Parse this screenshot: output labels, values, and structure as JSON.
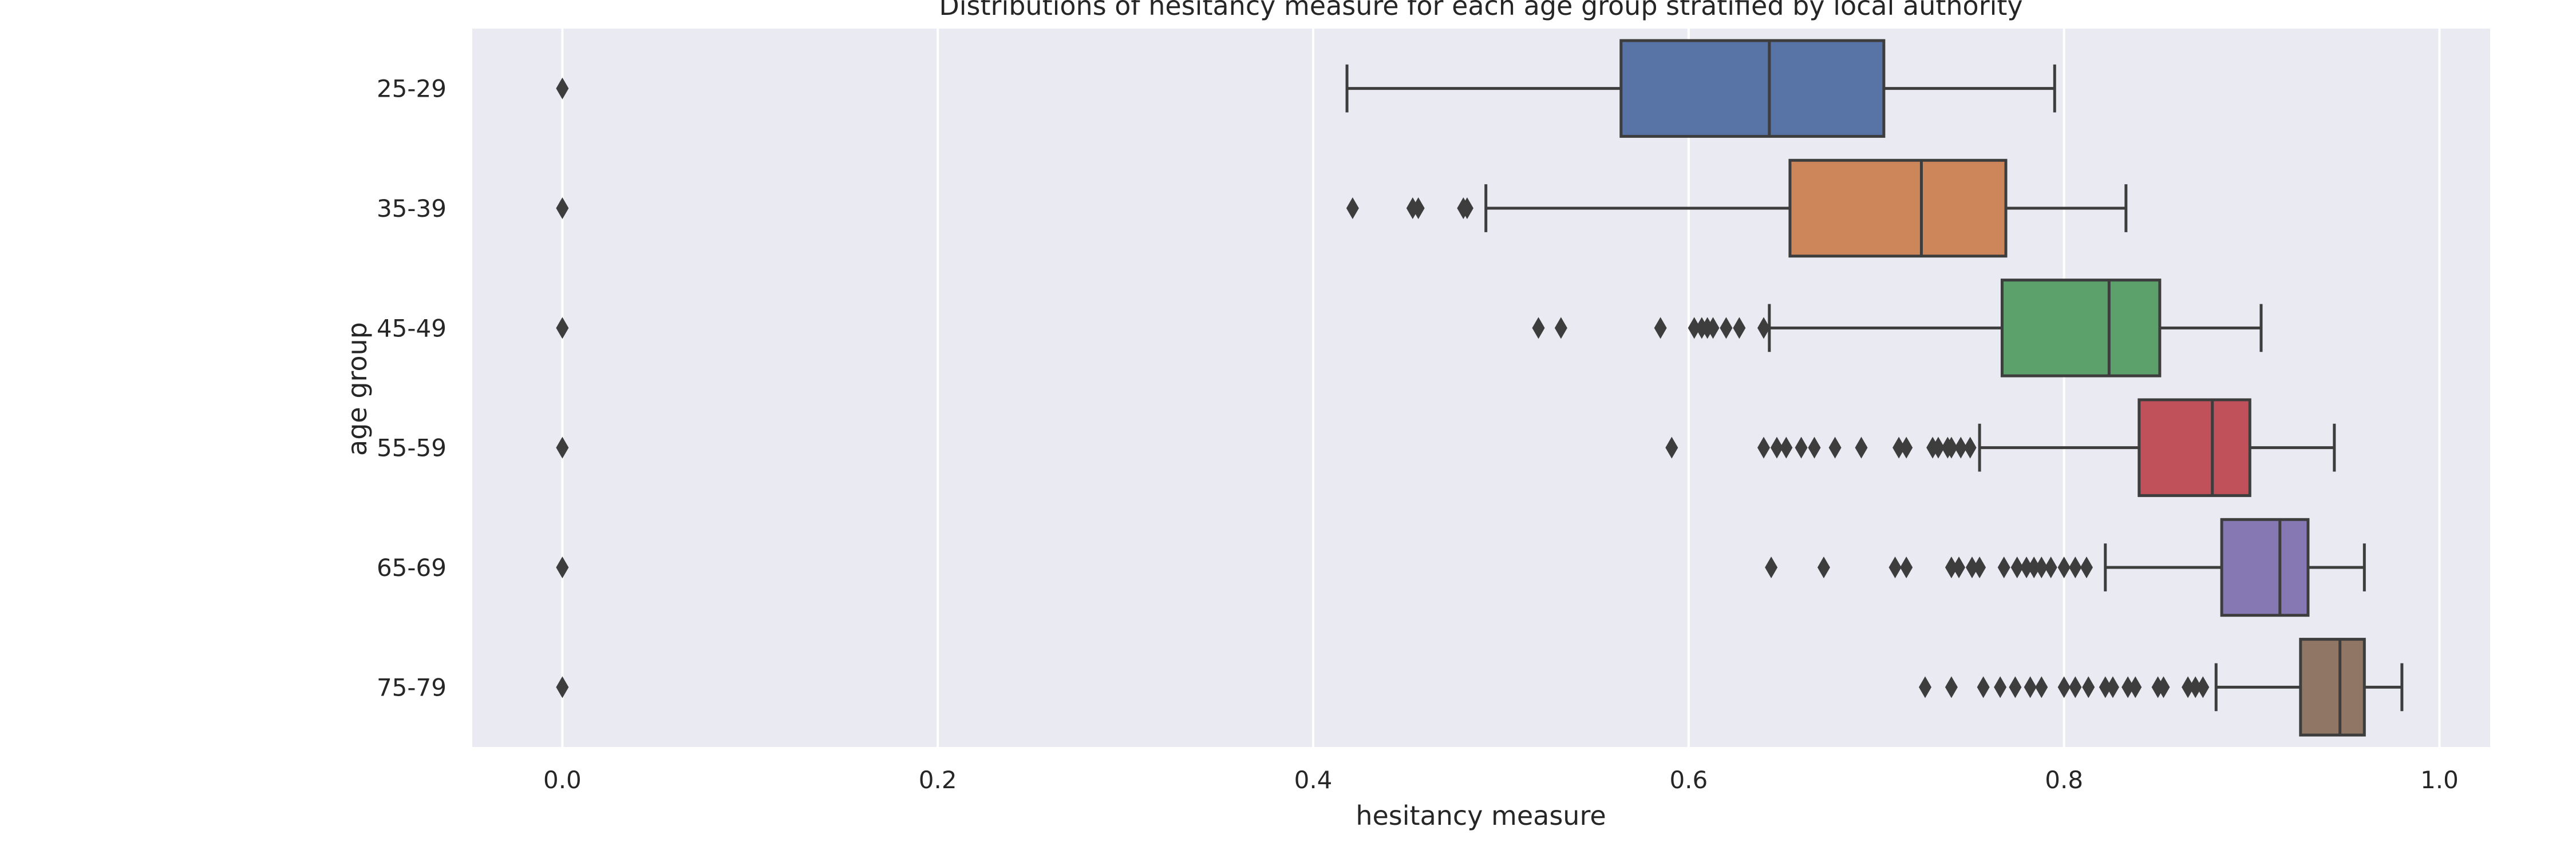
{
  "chart_data": {
    "type": "boxplot",
    "orientation": "horizontal",
    "title": "Distributions of hesitancy measure for each age group stratified by local authority",
    "xlabel": "hesitancy measure",
    "ylabel": "age group",
    "xlim": [
      -0.048,
      1.027
    ],
    "xticks": [
      0.0,
      0.2,
      0.4,
      0.6,
      0.8,
      1.0
    ],
    "xtick_labels": [
      "0.0",
      "0.2",
      "0.4",
      "0.6",
      "0.8",
      "1.0"
    ],
    "grid": true,
    "background": "#EAEAF2",
    "categories": [
      "25-29",
      "35-39",
      "45-49",
      "55-59",
      "65-69",
      "75-79"
    ],
    "colors": [
      "#5874A6",
      "#CD8659",
      "#5CA06B",
      "#C0515A",
      "#8679B3",
      "#8F7665"
    ],
    "boxes": [
      {
        "category": "25-29",
        "whislo": 0.418,
        "q1": 0.564,
        "med": 0.643,
        "q3": 0.704,
        "whishi": 0.795,
        "fliers": [
          0.0
        ]
      },
      {
        "category": "35-39",
        "whislo": 0.492,
        "q1": 0.654,
        "med": 0.724,
        "q3": 0.769,
        "whishi": 0.833,
        "fliers": [
          0.0,
          0.421,
          0.453,
          0.456,
          0.48,
          0.482
        ]
      },
      {
        "category": "45-49",
        "whislo": 0.643,
        "q1": 0.767,
        "med": 0.824,
        "q3": 0.851,
        "whishi": 0.905,
        "fliers": [
          0.0,
          0.52,
          0.532,
          0.585,
          0.603,
          0.607,
          0.61,
          0.613,
          0.62,
          0.627,
          0.64
        ]
      },
      {
        "category": "55-59",
        "whislo": 0.755,
        "q1": 0.84,
        "med": 0.879,
        "q3": 0.899,
        "whishi": 0.944,
        "fliers": [
          0.0,
          0.591,
          0.64,
          0.647,
          0.652,
          0.66,
          0.667,
          0.678,
          0.692,
          0.712,
          0.716,
          0.73,
          0.733,
          0.738,
          0.74,
          0.745,
          0.75
        ]
      },
      {
        "category": "65-69",
        "whislo": 0.822,
        "q1": 0.884,
        "med": 0.915,
        "q3": 0.93,
        "whishi": 0.96,
        "fliers": [
          0.0,
          0.644,
          0.672,
          0.71,
          0.716,
          0.74,
          0.744,
          0.751,
          0.755,
          0.768,
          0.775,
          0.78,
          0.784,
          0.788,
          0.793,
          0.8,
          0.806,
          0.812
        ]
      },
      {
        "category": "75-79",
        "whislo": 0.881,
        "q1": 0.926,
        "med": 0.947,
        "q3": 0.96,
        "whishi": 0.98,
        "fliers": [
          0.0,
          0.726,
          0.74,
          0.757,
          0.766,
          0.774,
          0.782,
          0.788,
          0.8,
          0.806,
          0.813,
          0.822,
          0.826,
          0.834,
          0.838,
          0.85,
          0.853,
          0.866,
          0.87,
          0.874
        ]
      }
    ]
  }
}
